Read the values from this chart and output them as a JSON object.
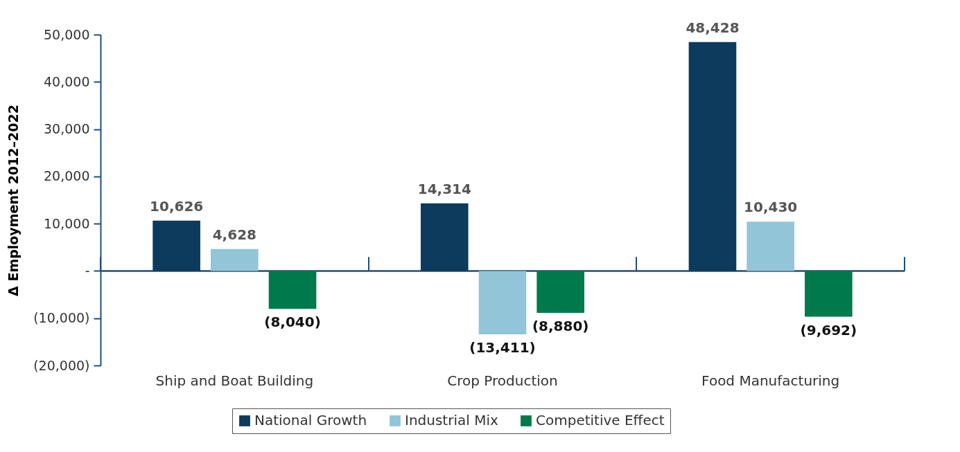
{
  "chart_data": {
    "type": "bar",
    "ylabel": "Δ Employment 2012–2022",
    "categories": [
      "Ship and Boat Building",
      "Crop Production",
      "Food Manufacturing"
    ],
    "series": [
      {
        "name": "National Growth",
        "color": "#0d3b5e",
        "values": [
          10626,
          14314,
          48428
        ],
        "value_labels": [
          "10,626",
          "14,314",
          "48,428"
        ]
      },
      {
        "name": "Industrial Mix",
        "color": "#92c5d8",
        "values": [
          4628,
          -13411,
          10430
        ],
        "value_labels": [
          "4,628",
          "(13,411)",
          "10,430"
        ]
      },
      {
        "name": "Competitive Effect",
        "color": "#007a4d",
        "values": [
          -8040,
          -8880,
          -9692
        ],
        "value_labels": [
          "(8,040)",
          "(8,880)",
          "(9,692)"
        ]
      }
    ],
    "ylim": [
      -20000,
      50000
    ],
    "yticks": [
      {
        "value": -20000,
        "label": "(20,000)"
      },
      {
        "value": -10000,
        "label": "(10,000)"
      },
      {
        "value": 0,
        "label": "-"
      },
      {
        "value": 10000,
        "label": "10,000"
      },
      {
        "value": 20000,
        "label": "20,000"
      },
      {
        "value": 30000,
        "label": "30,000"
      },
      {
        "value": 40000,
        "label": "40,000"
      },
      {
        "value": 50000,
        "label": "50,000"
      }
    ],
    "legend": "bottom"
  }
}
